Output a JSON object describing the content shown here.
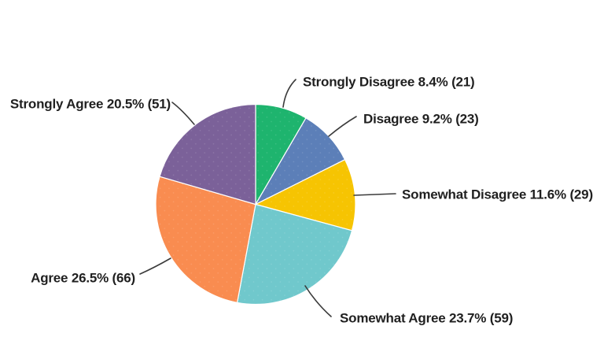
{
  "chart_data": {
    "type": "pie",
    "categories": [
      "Strongly Disagree",
      "Disagree",
      "Somewhat Disagree",
      "Somewhat Agree",
      "Agree",
      "Strongly Agree"
    ],
    "values": [
      21,
      23,
      29,
      59,
      66,
      51
    ],
    "percents": [
      8.4,
      9.2,
      11.6,
      23.7,
      26.5,
      20.5
    ],
    "labels": [
      "Strongly Disagree 8.4% (21)",
      "Disagree 9.2% (23)",
      "Somewhat Disagree 11.6% (29)",
      "Somewhat Agree 23.7% (59)",
      "Agree 26.5% (66)",
      "Strongly Agree 20.5% (51)"
    ],
    "colors": [
      "#1eb46e",
      "#5c7fb8",
      "#f6c402",
      "#70c8cc",
      "#f98c50",
      "#7b6199"
    ],
    "start_angle_deg": 0,
    "direction": "clockwise",
    "legend": "none",
    "label_style": "outside-with-leader-lines",
    "leader_line_color": "#3b3b3b",
    "slice_gap_color": "#ffffff",
    "background_color": "#ffffff",
    "label_text_color": "#1f1f1f"
  }
}
